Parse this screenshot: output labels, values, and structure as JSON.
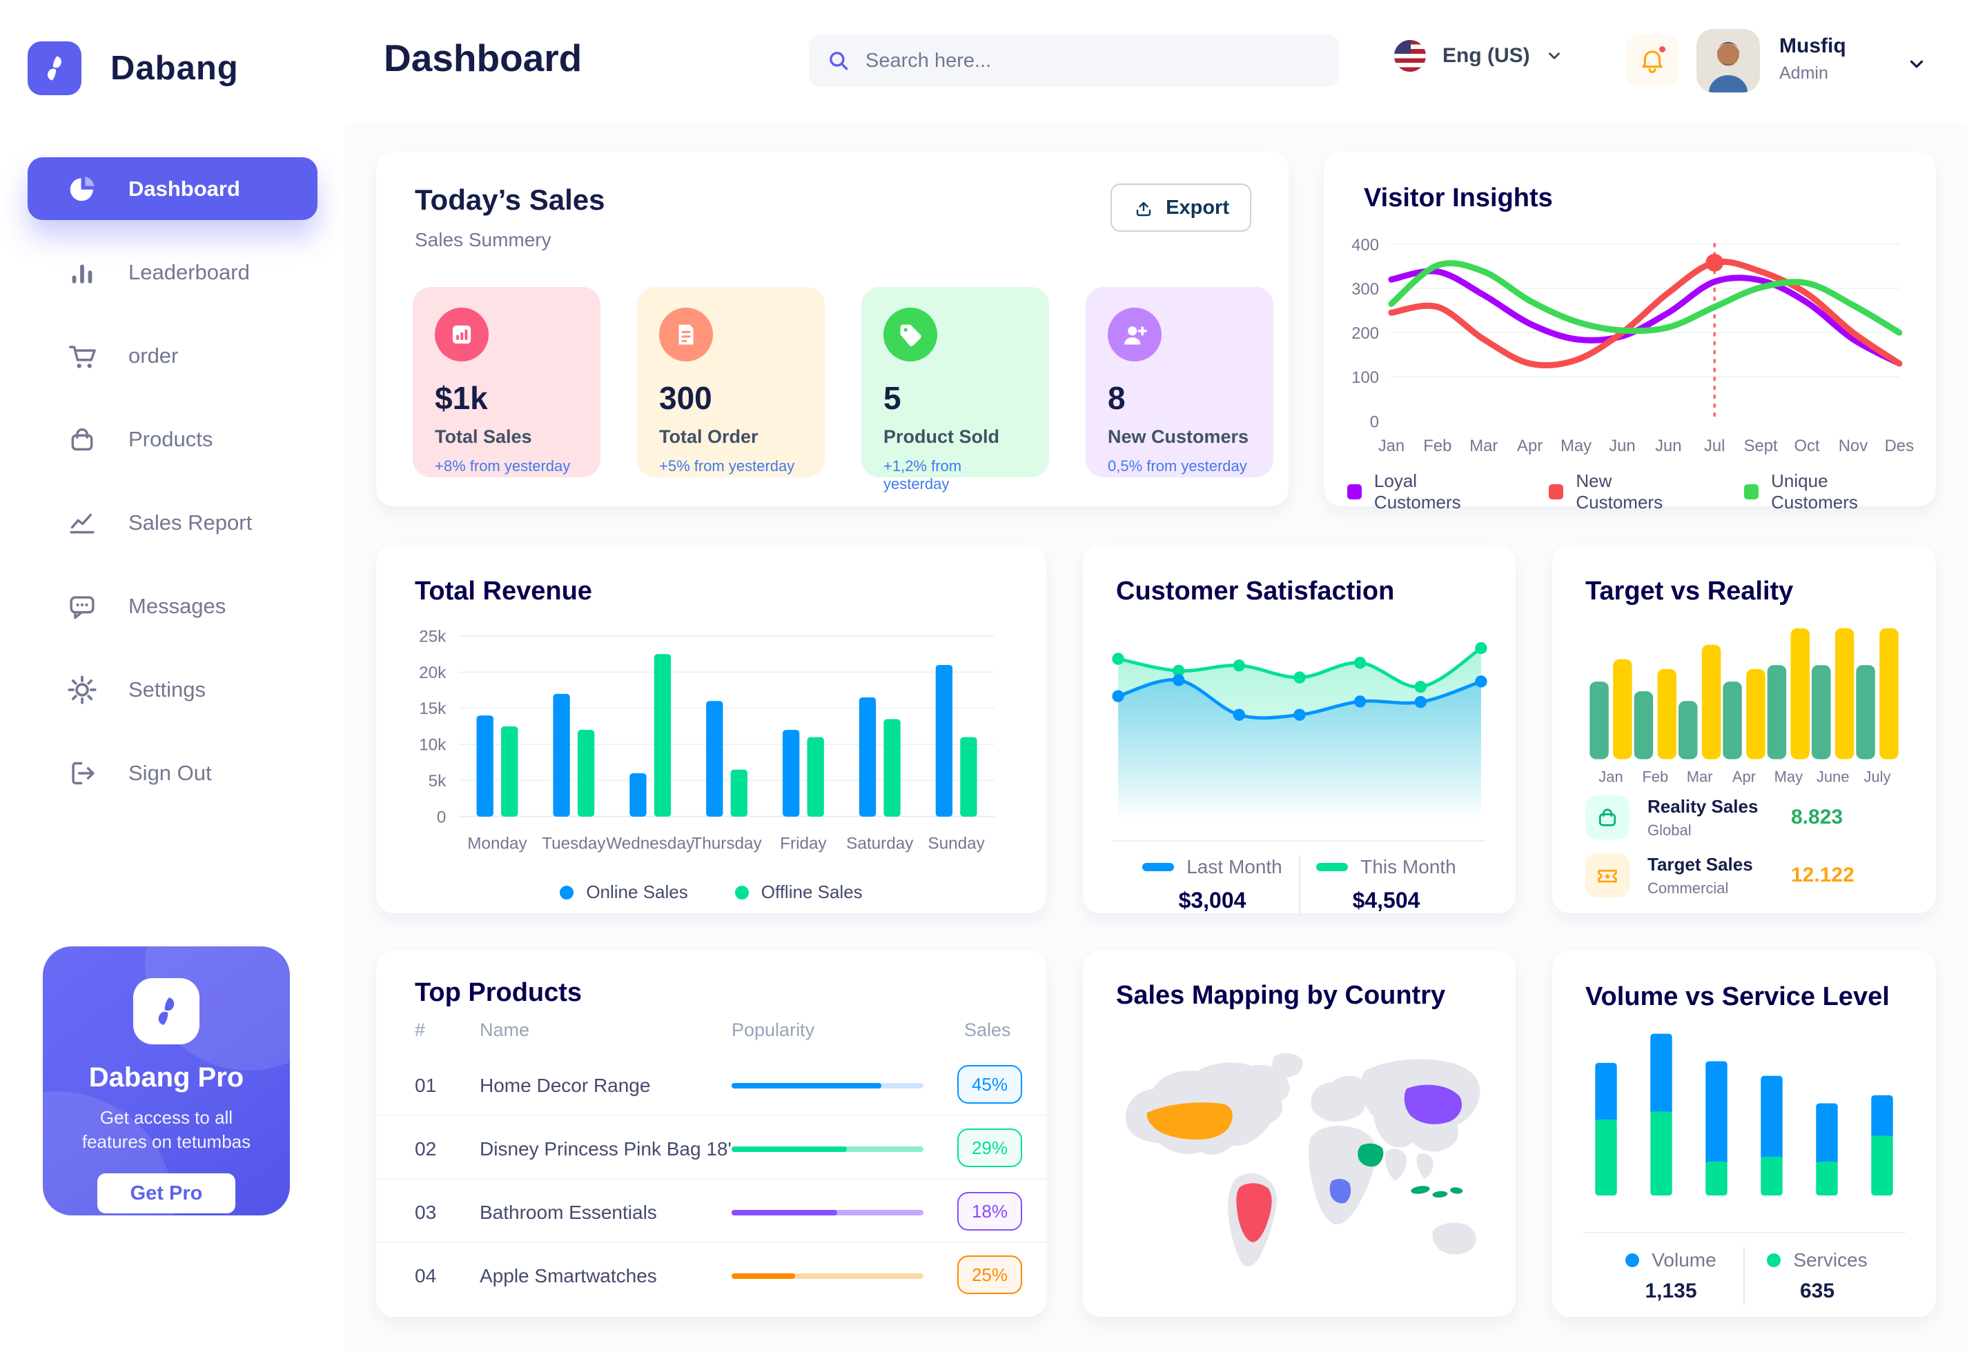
{
  "app": {
    "brand": "Dabang"
  },
  "sidebar": {
    "items": [
      {
        "label": "Dashboard",
        "icon": "pie-chart-icon",
        "active": true
      },
      {
        "label": "Leaderboard",
        "icon": "bar-chart-icon",
        "active": false
      },
      {
        "label": "order",
        "icon": "cart-icon",
        "active": false
      },
      {
        "label": "Products",
        "icon": "bag-icon",
        "active": false
      },
      {
        "label": "Sales Report",
        "icon": "line-chart-icon",
        "active": false
      },
      {
        "label": "Messages",
        "icon": "message-icon",
        "active": false
      },
      {
        "label": "Settings",
        "icon": "gear-icon",
        "active": false
      },
      {
        "label": "Sign Out",
        "icon": "sign-out-icon",
        "active": false
      }
    ],
    "pro": {
      "title": "Dabang Pro",
      "desc": "Get access to all features on tetumbas",
      "cta": "Get Pro"
    }
  },
  "header": {
    "title": "Dashboard",
    "search_placeholder": "Search here...",
    "language": "Eng (US)",
    "user": {
      "name": "Musfiq",
      "role": "Admin"
    }
  },
  "today_sales": {
    "title": "Today’s Sales",
    "subtitle": "Sales Summery",
    "export_label": "Export",
    "stats": [
      {
        "value": "$1k",
        "label": "Total Sales",
        "change": "+8% from yesterday",
        "bg": "#FFE2E5",
        "icon_bg": "#FA5A7D",
        "icon": "bar-chart-doc-icon"
      },
      {
        "value": "300",
        "label": "Total Order",
        "change": "+5% from yesterday",
        "bg": "#FFF4DE",
        "icon_bg": "#FF947A",
        "icon": "receipt-icon"
      },
      {
        "value": "5",
        "label": "Product Sold",
        "change": "+1,2% from yesterday",
        "bg": "#DCFCE7",
        "icon_bg": "#3CD856",
        "icon": "tag-icon"
      },
      {
        "value": "8",
        "label": "New Customers",
        "change": "0,5% from yesterday",
        "bg": "#F3E8FF",
        "icon_bg": "#BF83FF",
        "icon": "user-plus-icon"
      }
    ]
  },
  "charts": {
    "visitor_insights": {
      "type": "line",
      "title": "Visitor Insights",
      "x_labels": [
        "Jan",
        "Feb",
        "Mar",
        "Apr",
        "May",
        "Jun",
        "Jun",
        "Jul",
        "Sept",
        "Oct",
        "Nov",
        "Des"
      ],
      "y_ticks": [
        "0",
        "100",
        "200",
        "300",
        "400"
      ],
      "y_max": 400,
      "series": [
        {
          "name": "Loyal Customers",
          "color": "#A700FF",
          "values": [
            320,
            338,
            285,
            220,
            185,
            192,
            245,
            315,
            318,
            268,
            185,
            130
          ]
        },
        {
          "name": "New Customers",
          "color": "#F64E4E",
          "values": [
            245,
            258,
            185,
            130,
            138,
            200,
            290,
            358,
            338,
            288,
            200,
            130
          ]
        },
        {
          "name": "Unique Customers",
          "color": "#3CD856",
          "values": [
            265,
            352,
            338,
            272,
            225,
            205,
            212,
            258,
            302,
            312,
            262,
            200
          ]
        }
      ],
      "marker": {
        "series": 1,
        "index": 7,
        "value": 358
      }
    },
    "total_revenue": {
      "type": "bar",
      "title": "Total Revenue",
      "categories": [
        "Monday",
        "Tuesday",
        "Wednesday",
        "Thursday",
        "Friday",
        "Saturday",
        "Sunday"
      ],
      "y_ticks": [
        "0",
        "5k",
        "10k",
        "15k",
        "20k",
        "25k"
      ],
      "y_max": 25000,
      "series": [
        {
          "name": "Online Sales",
          "color": "#0095FF",
          "values": [
            14000,
            17000,
            6000,
            16000,
            12000,
            16500,
            21000
          ]
        },
        {
          "name": "Offline Sales",
          "color": "#00E096",
          "values": [
            12500,
            12000,
            22500,
            6500,
            11000,
            13500,
            11000
          ]
        }
      ]
    },
    "customer_satisfaction": {
      "type": "area",
      "title": "Customer Satisfaction",
      "y_max": 5.5,
      "series": [
        {
          "name": "Last Month",
          "color": "#0095FF",
          "total": "$3,004",
          "values": [
            3.15,
            3.75,
            2.45,
            2.45,
            2.95,
            2.93,
            3.7
          ]
        },
        {
          "name": "This Month",
          "color": "#00E096",
          "total": "$4,504",
          "values": [
            4.55,
            4.1,
            4.3,
            3.85,
            4.4,
            3.5,
            4.95
          ]
        }
      ]
    },
    "target_vs_reality": {
      "type": "bar",
      "title": "Target vs Reality",
      "categories": [
        "Jan",
        "Feb",
        "Mar",
        "Apr",
        "May",
        "June",
        "July"
      ],
      "y_max": 14,
      "series": [
        {
          "name": "Reality Sales",
          "color": "#4AB58E",
          "values": [
            8,
            7,
            6,
            8,
            9.7,
            9.7,
            9.7
          ]
        },
        {
          "name": "Target Sales",
          "color": "#FFCF00",
          "values": [
            10.3,
            9.3,
            11.8,
            9.3,
            13.5,
            13.5,
            13.5
          ]
        }
      ],
      "legend": [
        {
          "title": "Reality Sales",
          "sub": "Global",
          "value": "8.823",
          "value_color": "#27AE60",
          "icon_bg": "#E2FFF3",
          "icon": "bag-icon",
          "icon_color": "#00B074"
        },
        {
          "title": "Target Sales",
          "sub": "Commercial",
          "value": "12.122",
          "value_color": "#FFA412",
          "icon_bg": "#FFF4DE",
          "icon": "ticket-icon",
          "icon_color": "#FFA412"
        }
      ]
    },
    "volume_service": {
      "type": "stacked-bar",
      "title": "Volume vs Service Level",
      "y_max": 100,
      "series": [
        {
          "name": "Volume",
          "color": "#0095FF",
          "total": "1,135",
          "values": [
            35,
            48,
            62,
            50,
            36,
            25
          ]
        },
        {
          "name": "Services",
          "color": "#00E096",
          "total": "635",
          "values": [
            47,
            52,
            21,
            24,
            21,
            37
          ]
        }
      ]
    }
  },
  "top_products": {
    "title": "Top Products",
    "columns": [
      "#",
      "Name",
      "Popularity",
      "Sales"
    ],
    "rows": [
      {
        "num": "01",
        "name": "Home Decor Range",
        "sales": "45%",
        "fill": 0.78,
        "color": "#0095FF",
        "track": "#CDE4FF",
        "badge_bg": "#F0F9FF"
      },
      {
        "num": "02",
        "name": "Disney Princess Pink Bag 18'",
        "sales": "29%",
        "fill": 0.6,
        "color": "#00E096",
        "track": "#8CEFC9",
        "badge_bg": "#F0FDF7"
      },
      {
        "num": "03",
        "name": "Bathroom Essentials",
        "sales": "18%",
        "fill": 0.55,
        "color": "#884DFF",
        "track": "#C5A8FF",
        "badge_bg": "#FAF5FF"
      },
      {
        "num": "04",
        "name": "Apple Smartwatches",
        "sales": "25%",
        "fill": 0.33,
        "color": "#FF8900",
        "track": "#FFD8A7",
        "badge_bg": "#FFF7ED"
      }
    ]
  },
  "sales_map": {
    "title": "Sales Mapping by Country",
    "countries": [
      {
        "id": "usa",
        "color": "#FFA412"
      },
      {
        "id": "brazil",
        "color": "#F64E60"
      },
      {
        "id": "congo",
        "color": "#6577F3"
      },
      {
        "id": "saudi",
        "color": "#00B074"
      },
      {
        "id": "china",
        "color": "#8950FC"
      },
      {
        "id": "indonesia",
        "color": "#03A96B"
      }
    ]
  }
}
